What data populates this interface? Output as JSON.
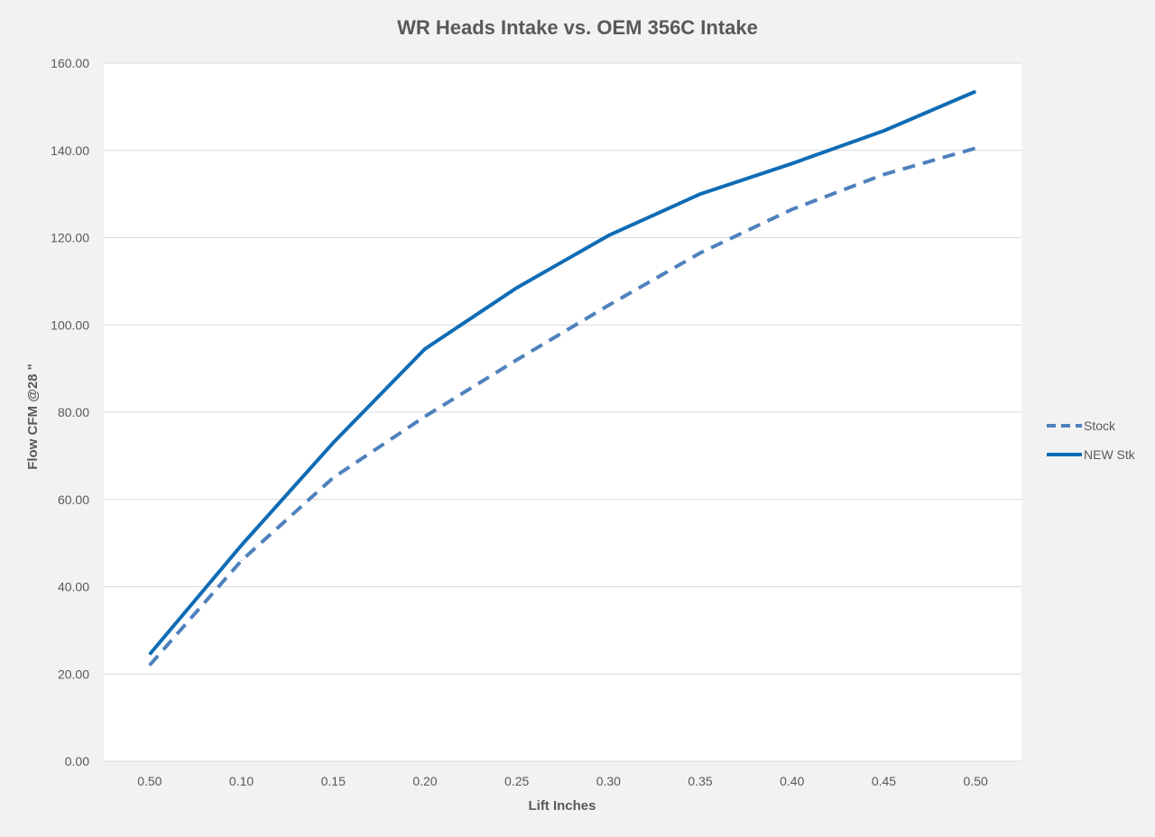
{
  "chart_data": {
    "type": "line",
    "title": "WR Heads Intake vs. OEM 356C Intake",
    "xlabel": "Lift Inches",
    "ylabel": "Flow CFM @28 \"",
    "categories": [
      "0.50",
      "0.10",
      "0.15",
      "0.20",
      "0.25",
      "0.30",
      "0.35",
      "0.40",
      "0.45",
      "0.50"
    ],
    "ylim": [
      0,
      160
    ],
    "yticks": [
      "0.00",
      "20.00",
      "40.00",
      "60.00",
      "80.00",
      "100.00",
      "120.00",
      "140.00",
      "160.00"
    ],
    "ytick_values": [
      0,
      20,
      40,
      60,
      80,
      100,
      120,
      140,
      160
    ],
    "grid": true,
    "legend_position": "right",
    "series": [
      {
        "name": "Stock",
        "style": "dashed",
        "color": "#4f81bd",
        "values": [
          22.0,
          46.0,
          65.0,
          79.0,
          92.0,
          104.5,
          116.5,
          126.5,
          134.5,
          140.5
        ]
      },
      {
        "name": "NEW Stk",
        "style": "solid",
        "color": "#0f6cb5",
        "values": [
          24.5,
          49.5,
          73.0,
          94.5,
          108.5,
          120.5,
          130.0,
          137.0,
          144.5,
          153.5
        ]
      }
    ]
  }
}
